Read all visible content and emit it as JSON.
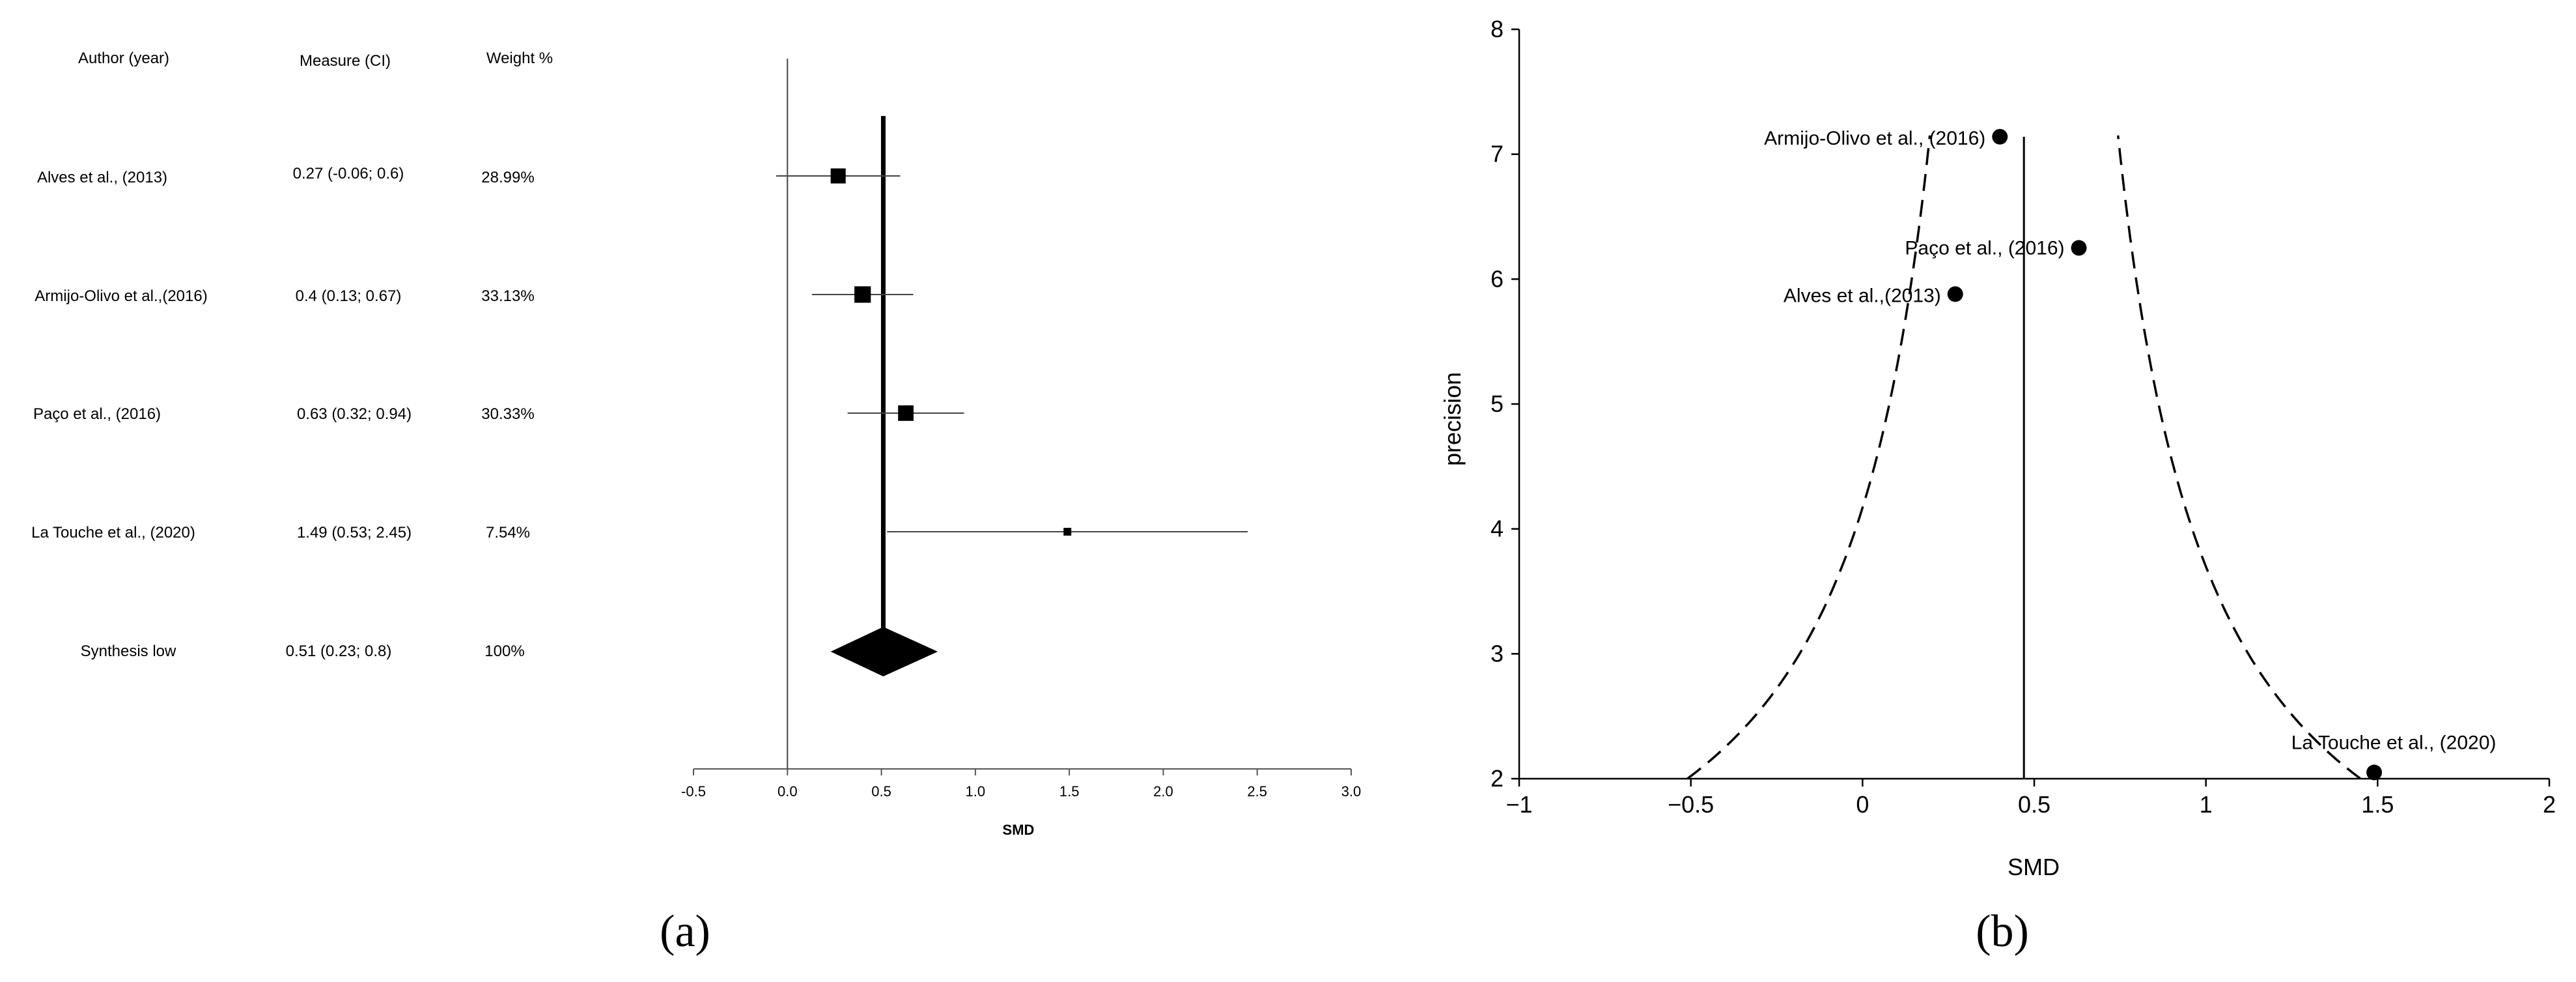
{
  "chart_data": [
    {
      "type": "table",
      "columns": [
        "Author (year)",
        "Measure (CI)",
        "Weight %"
      ],
      "rows": [
        {
          "study": "Alves et al., (2013)",
          "measure": "0.27 (-0.06; 0.6)",
          "weight": "28.99%",
          "smd": 0.27,
          "ci_low": -0.06,
          "ci_high": 0.6,
          "weight_value": 28.99
        },
        {
          "study": "Armijo-Olivo et al.,(2016)",
          "measure": "0.4 (0.13; 0.67)",
          "weight": "33.13%",
          "smd": 0.4,
          "ci_low": 0.13,
          "ci_high": 0.67,
          "weight_value": 33.13
        },
        {
          "study": "Paço et al., (2016)",
          "measure": "0.63 (0.32; 0.94)",
          "weight": "30.33%",
          "smd": 0.63,
          "ci_low": 0.32,
          "ci_high": 0.94,
          "weight_value": 30.33
        },
        {
          "study": "La Touche et al., (2020)",
          "measure": "1.49 (0.53; 2.45)",
          "weight": "7.54%",
          "smd": 1.49,
          "ci_low": 0.53,
          "ci_high": 2.45,
          "weight_value": 7.54
        }
      ],
      "synthesis": {
        "study": "Synthesis low",
        "measure": "0.51 (0.23; 0.8)",
        "weight": "100%",
        "smd": 0.51,
        "ci_low": 0.23,
        "ci_high": 0.8
      },
      "xlabel": "SMD",
      "xlim": [
        -0.5,
        3.0
      ],
      "xticks": [
        "-0.5",
        "0.0",
        "0.5",
        "1.0",
        "1.5",
        "2.0",
        "2.5",
        "3.0"
      ],
      "panel_label": "(a)"
    },
    {
      "type": "scatter",
      "xlabel": "SMD",
      "ylabel": "precision",
      "xlim": [
        -1,
        2
      ],
      "ylim": [
        2,
        8
      ],
      "xticks": [
        "−1",
        "−0.5",
        "0",
        "0.5",
        "1",
        "1.5",
        "2"
      ],
      "yticks": [
        "2",
        "3",
        "4",
        "5",
        "6",
        "7",
        "8"
      ],
      "points": [
        {
          "label": "Armijo-Olivo et al., (2016)",
          "x": 0.4,
          "y": 7.14
        },
        {
          "label": "Paço et al., (2016)",
          "x": 0.63,
          "y": 6.25
        },
        {
          "label": "Alves et al.,(2013)",
          "x": 0.27,
          "y": 5.88
        },
        {
          "label": "La Touche et al., (2020)",
          "x": 1.49,
          "y": 2.05
        }
      ],
      "pooled_smd": 0.47,
      "funnel": {
        "center": 0.47,
        "z": 1.96
      },
      "panel_label": "(b)"
    }
  ]
}
